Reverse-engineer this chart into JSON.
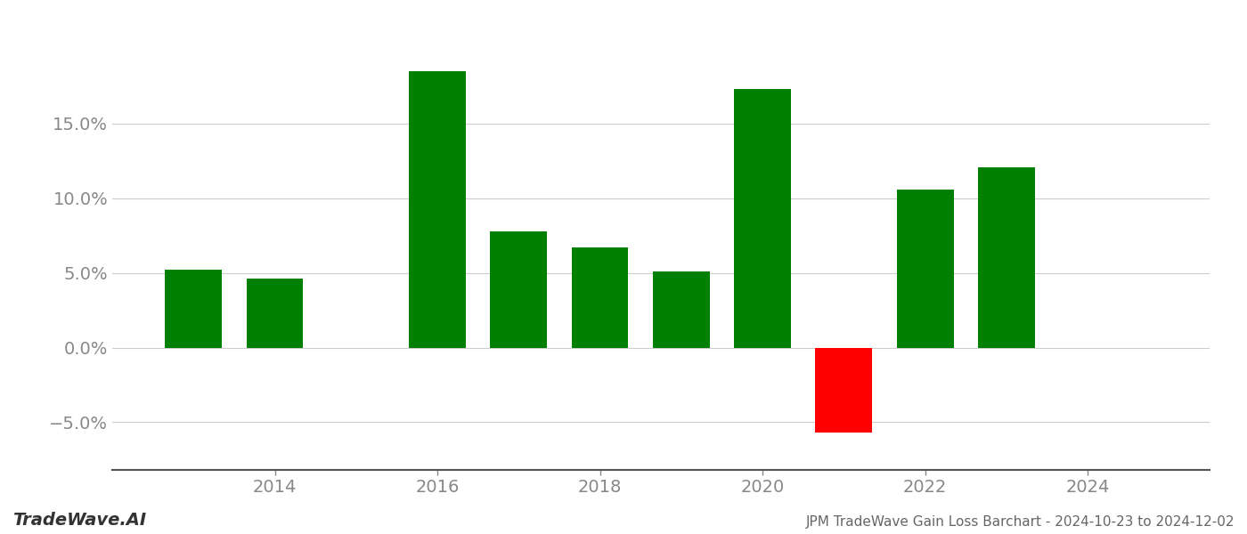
{
  "years": [
    2013,
    2014,
    2016,
    2017,
    2018,
    2019,
    2020,
    2021,
    2022,
    2023
  ],
  "values": [
    0.052,
    0.046,
    0.185,
    0.078,
    0.067,
    0.051,
    0.173,
    -0.057,
    0.106,
    0.121
  ],
  "colors": [
    "#008000",
    "#008000",
    "#008000",
    "#008000",
    "#008000",
    "#008000",
    "#008000",
    "#ff0000",
    "#008000",
    "#008000"
  ],
  "title": "JPM TradeWave Gain Loss Barchart - 2024-10-23 to 2024-12-02",
  "watermark": "TradeWave.AI",
  "xlim": [
    2012.0,
    2025.5
  ],
  "ylim": [
    -0.082,
    0.215
  ],
  "yticks": [
    -0.05,
    0.0,
    0.05,
    0.1,
    0.15
  ],
  "xticks": [
    2014,
    2016,
    2018,
    2020,
    2022,
    2024
  ],
  "bar_width": 0.7,
  "figsize": [
    14.0,
    6.0
  ],
  "dpi": 100,
  "grid_color": "#cccccc",
  "axis_color": "#555555",
  "tick_color": "#888888",
  "background_color": "#ffffff",
  "watermark_fontsize": 14,
  "title_fontsize": 11,
  "tick_fontsize": 14
}
